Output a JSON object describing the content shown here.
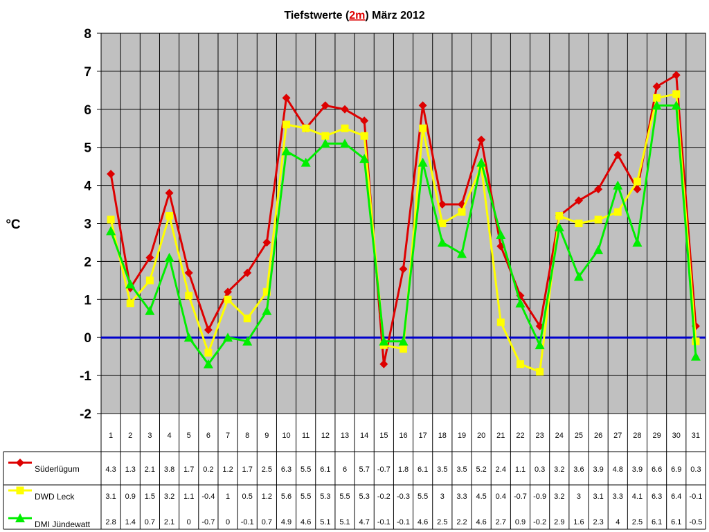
{
  "chart_data": {
    "type": "line",
    "title_parts": [
      "Tiefstwerte (",
      "2m",
      ") März 2012"
    ],
    "ylabel": "°C",
    "ylim": [
      -2,
      8
    ],
    "yticks": [
      -2,
      -1,
      0,
      1,
      2,
      3,
      4,
      5,
      6,
      7,
      8
    ],
    "grid": true,
    "plot_background": "#c0c0c0",
    "zero_line_color": "#0000cc",
    "categories": [
      "1",
      "2",
      "3",
      "4",
      "5",
      "6",
      "7",
      "8",
      "9",
      "10",
      "11",
      "12",
      "13",
      "14",
      "15",
      "16",
      "17",
      "18",
      "19",
      "20",
      "21",
      "22",
      "23",
      "24",
      "25",
      "26",
      "27",
      "28",
      "29",
      "30",
      "31"
    ],
    "series": [
      {
        "name": "Süderlügum",
        "color": "#dd0000",
        "marker": "diamond",
        "values": [
          4.3,
          1.3,
          2.1,
          3.8,
          1.7,
          0.2,
          1.2,
          1.7,
          2.5,
          6.3,
          5.5,
          6.1,
          6,
          5.7,
          -0.7,
          1.8,
          6.1,
          3.5,
          3.5,
          5.2,
          2.4,
          1.1,
          0.3,
          3.2,
          3.6,
          3.9,
          4.8,
          3.9,
          6.6,
          6.9,
          0.3
        ],
        "labels": [
          "4.3",
          "1.3",
          "2.1",
          "3.8",
          "1.7",
          "0.2",
          "1.2",
          "1.7",
          "2.5",
          "6.3",
          "5.5",
          "6.1",
          "6",
          "5.7",
          "-0.7",
          "1.8",
          "6.1",
          "3.5",
          "3.5",
          "5.2",
          "2.4",
          "1.1",
          "0.3",
          "3.2",
          "3.6",
          "3.9",
          "4.8",
          "3.9",
          "6.6",
          "6.9",
          "0.3"
        ]
      },
      {
        "name": "DWD Leck",
        "color": "#ffff00",
        "marker": "square",
        "values": [
          3.1,
          0.9,
          1.5,
          3.2,
          1.1,
          -0.4,
          1,
          0.5,
          1.2,
          5.6,
          5.5,
          5.3,
          5.5,
          5.3,
          -0.2,
          -0.3,
          5.5,
          3,
          3.3,
          4.5,
          0.4,
          -0.7,
          -0.9,
          3.2,
          3,
          3.1,
          3.3,
          4.1,
          6.3,
          6.4,
          -0.1
        ],
        "labels": [
          "3.1",
          "0.9",
          "1.5",
          "3.2",
          "1.1",
          "-0.4",
          "1",
          "0.5",
          "1.2",
          "5.6",
          "5.5",
          "5.3",
          "5.5",
          "5.3",
          "-0.2",
          "-0.3",
          "5.5",
          "3",
          "3.3",
          "4.5",
          "0.4",
          "-0.7",
          "-0.9",
          "3.2",
          "3",
          "3.1",
          "3.3",
          "4.1",
          "6.3",
          "6.4",
          "-0.1"
        ]
      },
      {
        "name": "DMI Jündewatt",
        "color": "#00ee00",
        "marker": "triangle",
        "values": [
          2.8,
          1.4,
          0.7,
          2.1,
          0,
          -0.7,
          0,
          -0.1,
          0.7,
          4.9,
          4.6,
          5.1,
          5.1,
          4.7,
          -0.1,
          -0.1,
          4.6,
          2.5,
          2.2,
          4.6,
          2.7,
          0.9,
          -0.2,
          2.9,
          1.6,
          2.3,
          4,
          2.5,
          6.1,
          6.1,
          -0.5
        ],
        "labels": [
          "2.8",
          "1.4",
          "0.7",
          "2.1",
          "0",
          "-0.7",
          "0",
          "-0.1",
          "0.7",
          "4.9",
          "4.6",
          "5.1",
          "5.1",
          "4.7",
          "-0.1",
          "-0.1",
          "4.6",
          "2.5",
          "2.2",
          "4.6",
          "2.7",
          "0.9",
          "-0.2",
          "2.9",
          "1.6",
          "2.3",
          "4",
          "2.5",
          "6.1",
          "6.1",
          "-0.5"
        ]
      }
    ]
  }
}
